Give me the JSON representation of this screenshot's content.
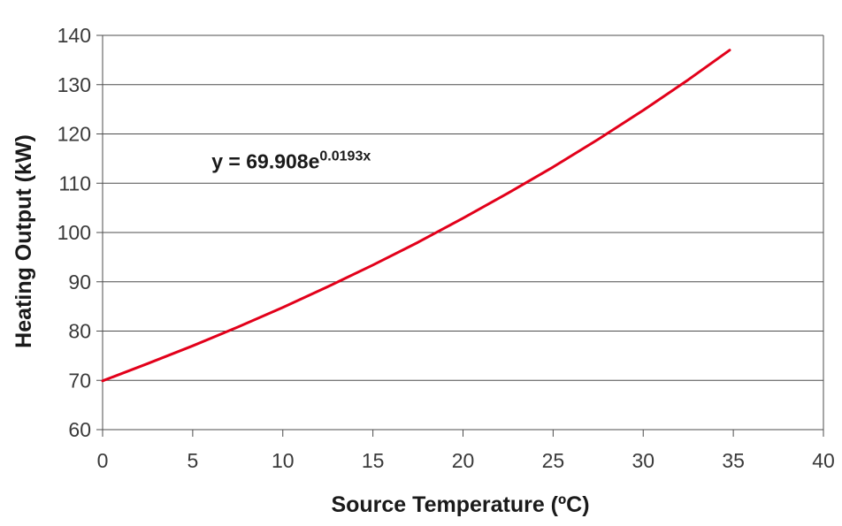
{
  "chart_data": {
    "type": "line",
    "title": "",
    "xlabel": "Source Temperature (ºC)",
    "ylabel": "Heating Output (kW)",
    "xlim": [
      0,
      40
    ],
    "ylim": [
      60,
      140
    ],
    "x_ticks": [
      0,
      5,
      10,
      15,
      20,
      25,
      30,
      35,
      40
    ],
    "y_ticks": [
      60,
      70,
      80,
      90,
      100,
      110,
      120,
      130,
      140
    ],
    "grid": {
      "horizontal": true,
      "vertical": false
    },
    "series": [
      {
        "color": "#e2001a",
        "x": [
          0,
          2.5,
          5,
          7.5,
          10,
          12.5,
          15,
          17.5,
          20,
          22.5,
          25,
          27.5,
          30,
          32.5,
          34.8
        ],
        "y": [
          69.9,
          73.4,
          77.0,
          80.8,
          84.8,
          89.0,
          93.4,
          98.0,
          102.9,
          108.0,
          113.3,
          118.9,
          124.8,
          131.0,
          137.0
        ]
      }
    ],
    "annotations": [
      {
        "text_main": "y = 69.908e",
        "text_sup": "0.0193x",
        "x": 6,
        "y": 120
      }
    ]
  }
}
